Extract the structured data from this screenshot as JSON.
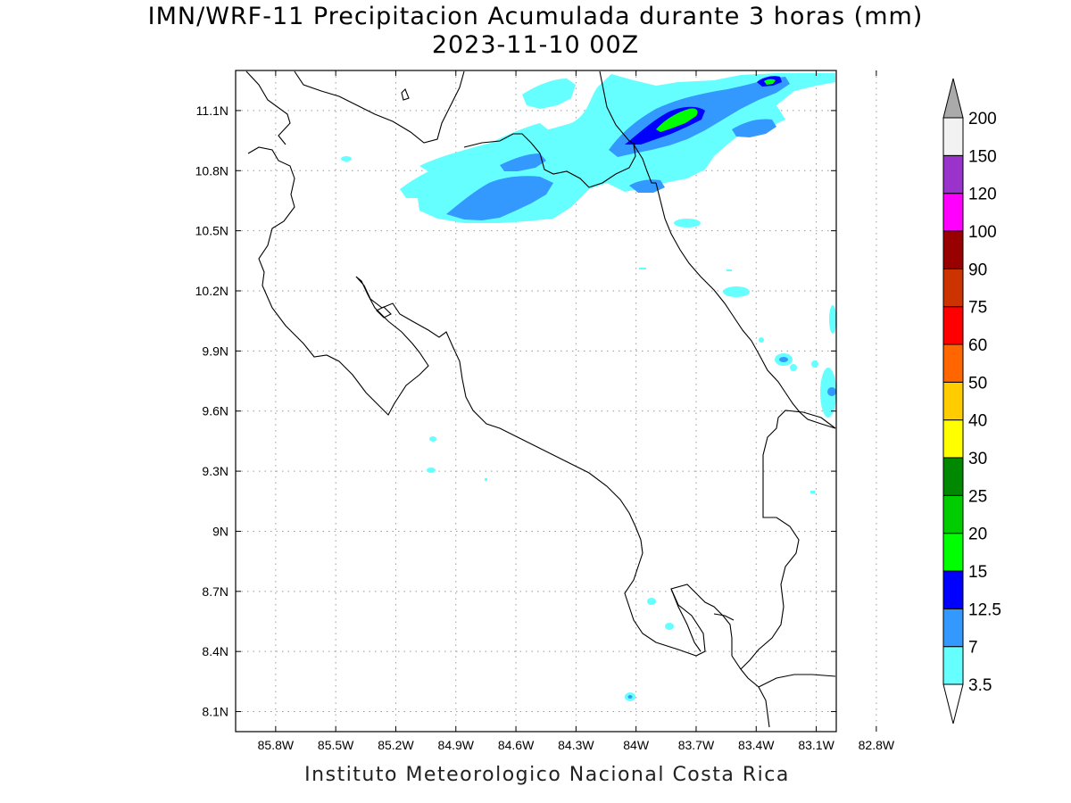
{
  "title_line1": "IMN/WRF-11 Precipitacion Acumulada durante 3 horas (mm)",
  "title_line2": "2023-11-10 00Z",
  "footer": "Instituto Meteorologico Nacional Costa Rica",
  "map": {
    "lon_range": [
      -86.0,
      -83.0
    ],
    "lat_range": [
      8.0,
      11.3
    ],
    "lon_ticks": [
      {
        "value": -85.8,
        "label": "85.8W"
      },
      {
        "value": -85.5,
        "label": "85.5W"
      },
      {
        "value": -85.2,
        "label": "85.2W"
      },
      {
        "value": -84.9,
        "label": "84.9W"
      },
      {
        "value": -84.6,
        "label": "84.6W"
      },
      {
        "value": -84.3,
        "label": "84.3W"
      },
      {
        "value": -84.0,
        "label": "84W"
      },
      {
        "value": -83.7,
        "label": "83.7W"
      },
      {
        "value": -83.4,
        "label": "83.4W"
      },
      {
        "value": -83.1,
        "label": "83.1W"
      },
      {
        "value": -82.8,
        "label": "82.8W"
      }
    ],
    "lat_ticks": [
      {
        "value": 11.1,
        "label": "11.1N"
      },
      {
        "value": 10.8,
        "label": "10.8N"
      },
      {
        "value": 10.5,
        "label": "10.5N"
      },
      {
        "value": 10.2,
        "label": "10.2N"
      },
      {
        "value": 9.9,
        "label": "9.9N"
      },
      {
        "value": 9.6,
        "label": "9.6N"
      },
      {
        "value": 9.3,
        "label": "9.3N"
      },
      {
        "value": 9.0,
        "label": "9N"
      },
      {
        "value": 8.7,
        "label": "8.7N"
      },
      {
        "value": 8.4,
        "label": "8.4N"
      },
      {
        "value": 8.1,
        "label": "8.1N"
      }
    ],
    "gridlines": true
  },
  "colorbar": {
    "labels": [
      "3.5",
      "7",
      "12.5",
      "15",
      "20",
      "25",
      "30",
      "40",
      "50",
      "60",
      "75",
      "90",
      "100",
      "120",
      "150",
      "200"
    ],
    "colors": [
      "#66ffff",
      "#3399ff",
      "#0000ff",
      "#00ff00",
      "#00cc00",
      "#008800",
      "#ffff00",
      "#ffcc00",
      "#ff6600",
      "#ff0000",
      "#cc3300",
      "#990000",
      "#ff00ff",
      "#9933cc",
      "#f2f2f2",
      "#aaaaaa"
    ]
  }
}
